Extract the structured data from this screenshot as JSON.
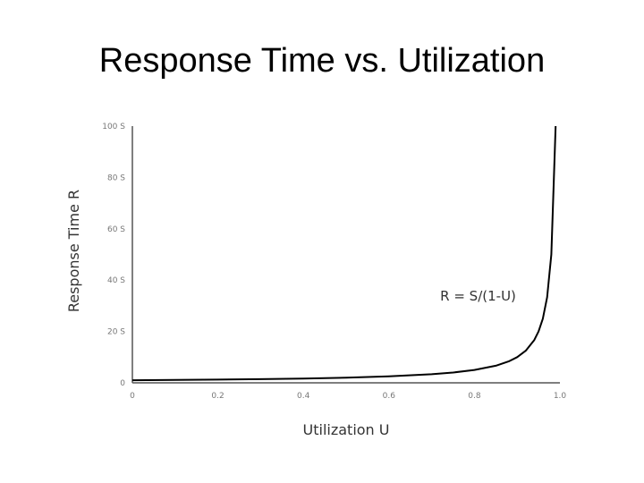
{
  "slide": {
    "title": "Response Time vs. Utilization"
  },
  "chart_data": {
    "type": "line",
    "title": "Response Time vs. Utilization",
    "xlabel": "Utilization U",
    "ylabel": "Response Time R",
    "xlim": [
      0,
      1.0
    ],
    "ylim": [
      0,
      100
    ],
    "x_ticks": [
      {
        "value": 0,
        "label": "0"
      },
      {
        "value": 0.2,
        "label": "0.2"
      },
      {
        "value": 0.4,
        "label": "0.4"
      },
      {
        "value": 0.6,
        "label": "0.6"
      },
      {
        "value": 0.8,
        "label": "0.8"
      },
      {
        "value": 1.0,
        "label": "1.0"
      }
    ],
    "y_ticks": [
      {
        "value": 0,
        "label": "0"
      },
      {
        "value": 20,
        "label": "20 S"
      },
      {
        "value": 40,
        "label": "40 S"
      },
      {
        "value": 60,
        "label": "60 S"
      },
      {
        "value": 80,
        "label": "80 S"
      },
      {
        "value": 100,
        "label": "100 S"
      }
    ],
    "annotation": {
      "text": "R = S/(1-U)",
      "x": 0.72,
      "y": 32
    },
    "grid": false,
    "series": [
      {
        "x": [
          0,
          0.1,
          0.2,
          0.3,
          0.4,
          0.5,
          0.6,
          0.7,
          0.75,
          0.8,
          0.85,
          0.88,
          0.9,
          0.92,
          0.94,
          0.95,
          0.96,
          0.97,
          0.98,
          0.99
        ],
        "y": [
          1,
          1.11,
          1.25,
          1.43,
          1.67,
          2,
          2.5,
          3.33,
          4,
          5,
          6.67,
          8.33,
          10,
          12.5,
          16.67,
          20,
          25,
          33.33,
          50,
          100
        ]
      }
    ],
    "line_color": "#000000",
    "axis_color": "#555555"
  }
}
